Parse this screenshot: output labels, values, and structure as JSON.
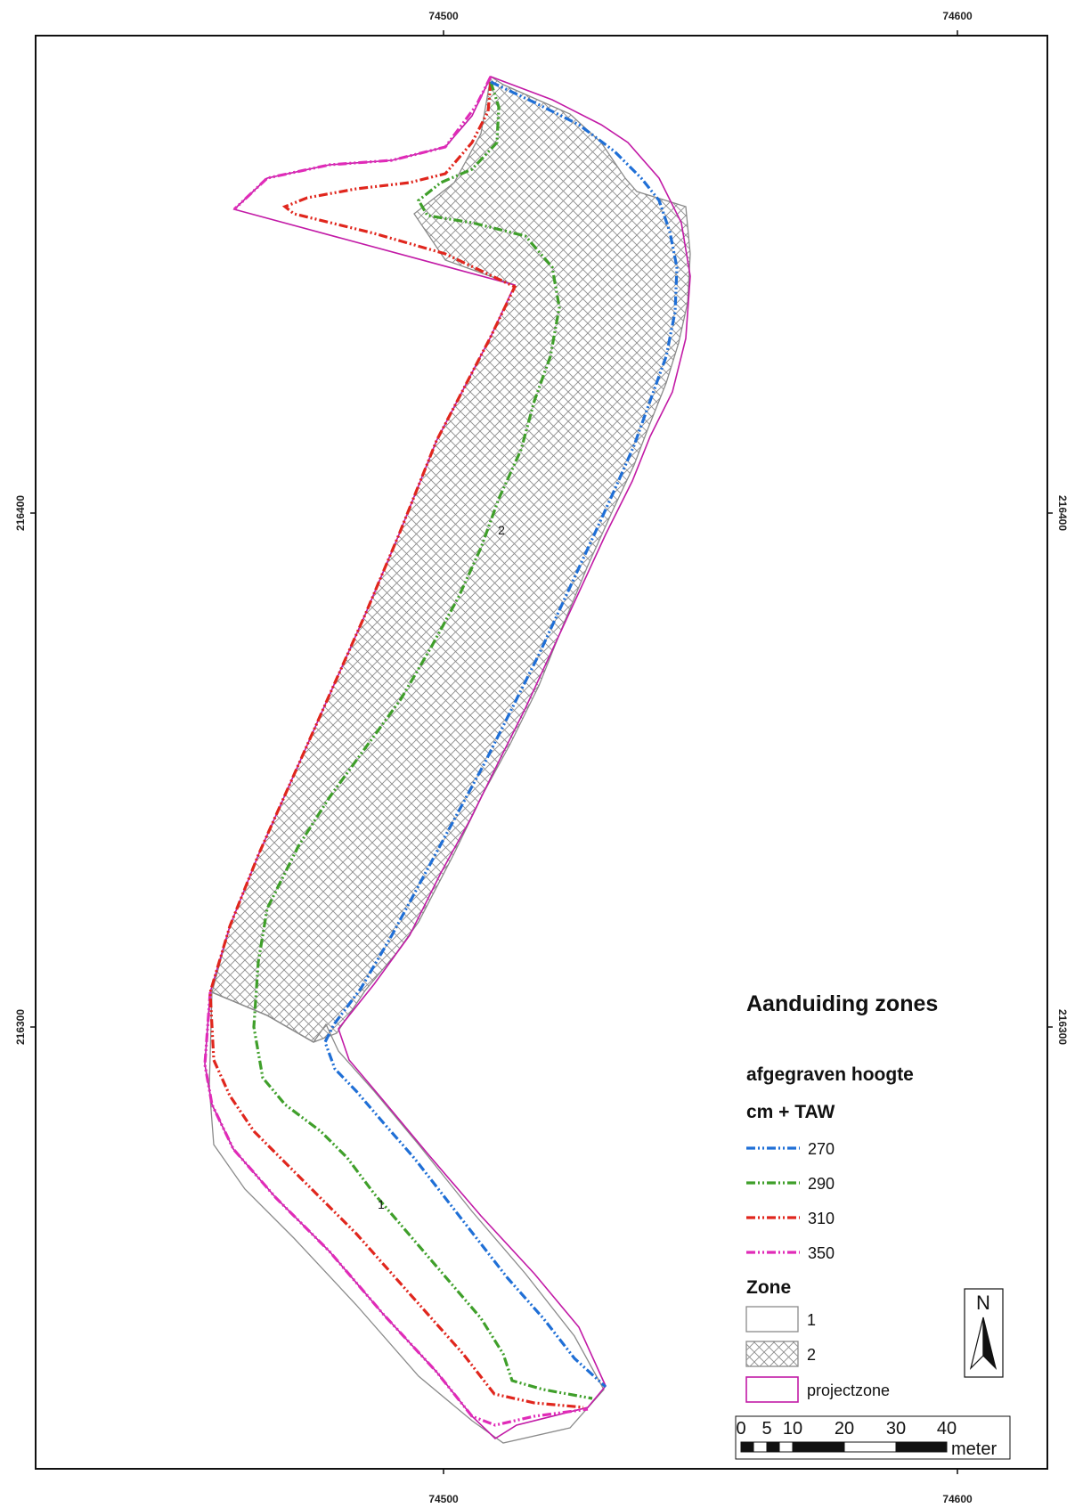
{
  "map": {
    "grid_x_labels": [
      "74500",
      "74600"
    ],
    "grid_y_labels": [
      "216400",
      "216300"
    ],
    "zone_labels": [
      "2",
      "1"
    ]
  },
  "legend": {
    "title": "Aanduiding zones",
    "subtitle_1": "afgegraven hoogte",
    "subtitle_2": "cm + TAW",
    "contours": [
      {
        "label": "270",
        "color": "#1f6fd6"
      },
      {
        "label": "290",
        "color": "#3f9f2a"
      },
      {
        "label": "310",
        "color": "#e0261d"
      },
      {
        "label": "350",
        "color": "#e02bb8"
      }
    ],
    "zone_heading": "Zone",
    "zones": [
      {
        "label": "1",
        "symbol": "empty"
      },
      {
        "label": "2",
        "symbol": "crosshatch"
      },
      {
        "label": "projectzone",
        "symbol": "magenta-outline"
      }
    ]
  },
  "scale_bar": {
    "ticks": [
      "0",
      "5",
      "10",
      "20",
      "30",
      "40"
    ],
    "unit": "meter"
  },
  "north_arrow": {
    "label": "N"
  },
  "colors": {
    "projectzone": "#c21aa6",
    "zone_outline": "#8a8a8a",
    "hatch": "#8c8c8c"
  }
}
